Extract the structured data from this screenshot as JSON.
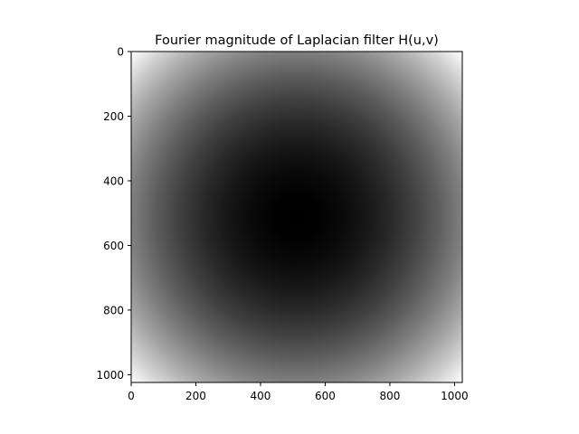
{
  "chart_data": {
    "type": "heatmap",
    "title": "Fourier magnitude of Laplacian filter H(u,v)",
    "xlabel": "",
    "ylabel": "",
    "colormap": "gray",
    "grid": false,
    "legend": "none",
    "image_size": [
      1024,
      1024
    ],
    "center": [
      512,
      512
    ],
    "value_function": "squared distance from center (u-512)^2 + (v-512)^2, black at center, white at corners",
    "xlim": [
      0,
      1024
    ],
    "ylim": [
      1024,
      0
    ],
    "xticks": [
      0,
      200,
      400,
      600,
      800,
      1000
    ],
    "yticks": [
      0,
      200,
      400,
      600,
      800,
      1000
    ],
    "xtick_labels": [
      "0",
      "200",
      "400",
      "600",
      "800",
      "1000"
    ],
    "ytick_labels": [
      "0",
      "200",
      "400",
      "600",
      "800",
      "1000"
    ]
  },
  "colors": {
    "background": "#ffffff",
    "axes_frame": "#000000",
    "text": "#000000"
  }
}
